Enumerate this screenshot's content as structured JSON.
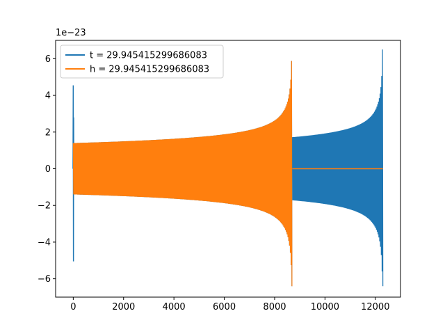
{
  "chart_data": {
    "type": "line",
    "title": "",
    "xlabel": "",
    "ylabel": "",
    "y_offset_text": "1e−23",
    "xlim": [
      -700,
      13000
    ],
    "ylim": [
      -7.0,
      7.0
    ],
    "x_ticks": [
      0,
      2000,
      4000,
      6000,
      8000,
      10000,
      12000
    ],
    "x_tick_labels": [
      "0",
      "2000",
      "4000",
      "6000",
      "8000",
      "10000",
      "12000"
    ],
    "y_ticks": [
      -6,
      -4,
      -2,
      0,
      2,
      4,
      6
    ],
    "y_tick_labels": [
      "−6",
      "−4",
      "−2",
      "0",
      "2",
      "4",
      "6"
    ],
    "grid": false,
    "legend_position": "top-left",
    "series": [
      {
        "name": "t = 29.945415299686083",
        "color": "#1f77b4",
        "description_points": {
          "initial_spike_x": 0,
          "initial_spike_max": 4.55,
          "initial_spike_min": -5.05,
          "main_start_x": 8700,
          "main_end_x": 12300,
          "main_start_amplitude": 1.72,
          "main_peak_max": 6.5,
          "main_peak_min": -6.4,
          "hidden_region_x": [
            0,
            8700
          ],
          "hidden_region_amplitude_start": 1.4
        }
      },
      {
        "name": "h = 29.945415299686083",
        "color": "#ff7f0e",
        "description_points": {
          "start_x": 0,
          "end_x": 8700,
          "start_amplitude": 1.4,
          "peak_max": 6.5,
          "peak_min": -6.4,
          "zero_after_x": [
            8700,
            12300
          ]
        }
      }
    ]
  }
}
